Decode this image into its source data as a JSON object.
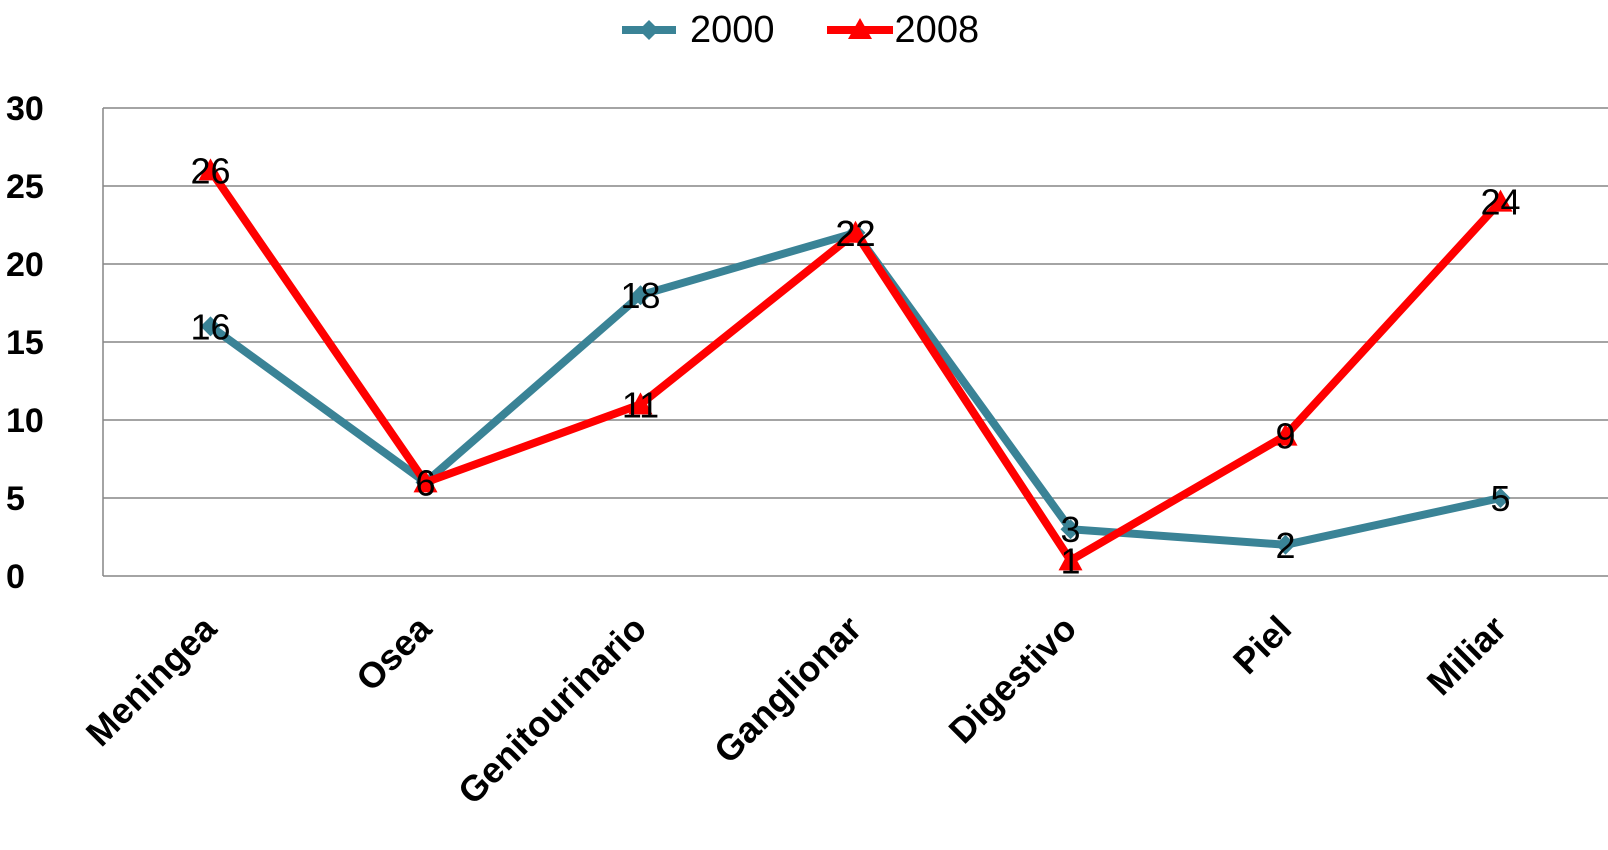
{
  "chart_data": {
    "type": "line",
    "categories": [
      "Meningea",
      "Osea",
      "Genitourinario",
      "Ganglionar",
      "Digestivo",
      "Piel",
      "Miliar"
    ],
    "series": [
      {
        "name": "2000",
        "values": [
          16,
          6,
          18,
          22,
          3,
          2,
          5
        ],
        "color": "#3a8396",
        "marker": "diamond"
      },
      {
        "name": "2008",
        "values": [
          26,
          6,
          11,
          22,
          1,
          9,
          24
        ],
        "color": "#ff0000",
        "marker": "triangle"
      }
    ],
    "ylim": [
      0,
      30
    ],
    "yticks": [
      0,
      5,
      10,
      15,
      20,
      25,
      30
    ],
    "grid": true,
    "legend": "top-center",
    "data_labels": true,
    "title": "",
    "xlabel": "",
    "ylabel": ""
  }
}
